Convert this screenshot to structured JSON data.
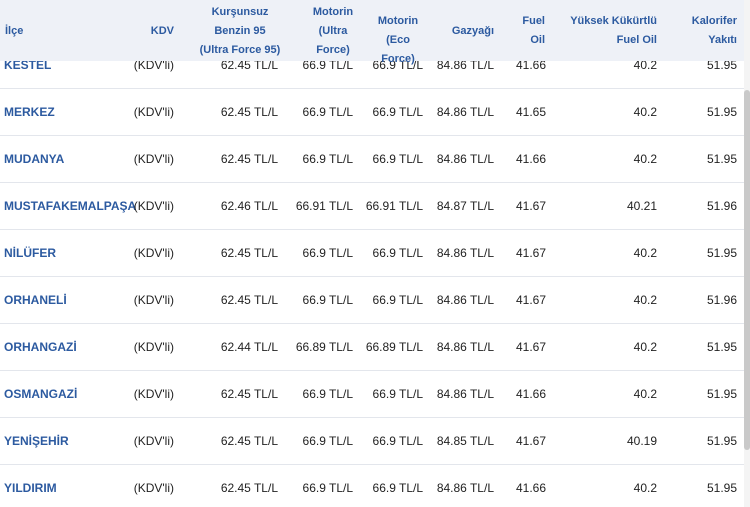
{
  "columns": {
    "ilce": "İlçe",
    "kdv": "KDV",
    "kursunsuz": [
      "Kurşunsuz",
      "Benzin 95",
      "(Ultra Force 95)"
    ],
    "motorin_ultra": [
      "Motorin",
      "(Ultra",
      "Force)"
    ],
    "motorin_eco": [
      "Motorin",
      "(Eco Force)"
    ],
    "gazyagi": "Gazyağı",
    "fuel_oil": [
      "Fuel",
      "Oil"
    ],
    "yuksek": [
      "Yüksek Kükürtlü",
      "Fuel Oil"
    ],
    "kalorifer": [
      "Kalorifer",
      "Yakıtı"
    ]
  },
  "rows": [
    {
      "district": "KESTEL",
      "kdv": "(KDV'li)",
      "k95": "62.45 TL/L",
      "mu": "66.9 TL/L",
      "me": "66.9 TL/L",
      "gaz": "84.86 TL/L",
      "fo": "41.66",
      "yk": "40.2",
      "kal": "51.95"
    },
    {
      "district": "MERKEZ",
      "kdv": "(KDV'li)",
      "k95": "62.45 TL/L",
      "mu": "66.9 TL/L",
      "me": "66.9 TL/L",
      "gaz": "84.86 TL/L",
      "fo": "41.65",
      "yk": "40.2",
      "kal": "51.95"
    },
    {
      "district": "MUDANYA",
      "kdv": "(KDV'li)",
      "k95": "62.45 TL/L",
      "mu": "66.9 TL/L",
      "me": "66.9 TL/L",
      "gaz": "84.86 TL/L",
      "fo": "41.66",
      "yk": "40.2",
      "kal": "51.95"
    },
    {
      "district": "MUSTAFAKEMALPAŞA",
      "kdv": "(KDV'li)",
      "k95": "62.46 TL/L",
      "mu": "66.91 TL/L",
      "me": "66.91 TL/L",
      "gaz": "84.87 TL/L",
      "fo": "41.67",
      "yk": "40.21",
      "kal": "51.96"
    },
    {
      "district": "NİLÜFER",
      "kdv": "(KDV'li)",
      "k95": "62.45 TL/L",
      "mu": "66.9 TL/L",
      "me": "66.9 TL/L",
      "gaz": "84.86 TL/L",
      "fo": "41.67",
      "yk": "40.2",
      "kal": "51.95"
    },
    {
      "district": "ORHANELİ",
      "kdv": "(KDV'li)",
      "k95": "62.45 TL/L",
      "mu": "66.9 TL/L",
      "me": "66.9 TL/L",
      "gaz": "84.86 TL/L",
      "fo": "41.67",
      "yk": "40.2",
      "kal": "51.96"
    },
    {
      "district": "ORHANGAZİ",
      "kdv": "(KDV'li)",
      "k95": "62.44 TL/L",
      "mu": "66.89 TL/L",
      "me": "66.89 TL/L",
      "gaz": "84.86 TL/L",
      "fo": "41.67",
      "yk": "40.2",
      "kal": "51.95"
    },
    {
      "district": "OSMANGAZİ",
      "kdv": "(KDV'li)",
      "k95": "62.45 TL/L",
      "mu": "66.9 TL/L",
      "me": "66.9 TL/L",
      "gaz": "84.86 TL/L",
      "fo": "41.66",
      "yk": "40.2",
      "kal": "51.95"
    },
    {
      "district": "YENİŞEHİR",
      "kdv": "(KDV'li)",
      "k95": "62.45 TL/L",
      "mu": "66.9 TL/L",
      "me": "66.9 TL/L",
      "gaz": "84.85 TL/L",
      "fo": "41.67",
      "yk": "40.19",
      "kal": "51.95"
    },
    {
      "district": "YILDIRIM",
      "kdv": "(KDV'li)",
      "k95": "62.45 TL/L",
      "mu": "66.9 TL/L",
      "me": "66.9 TL/L",
      "gaz": "84.86 TL/L",
      "fo": "41.66",
      "yk": "40.2",
      "kal": "51.95"
    }
  ]
}
